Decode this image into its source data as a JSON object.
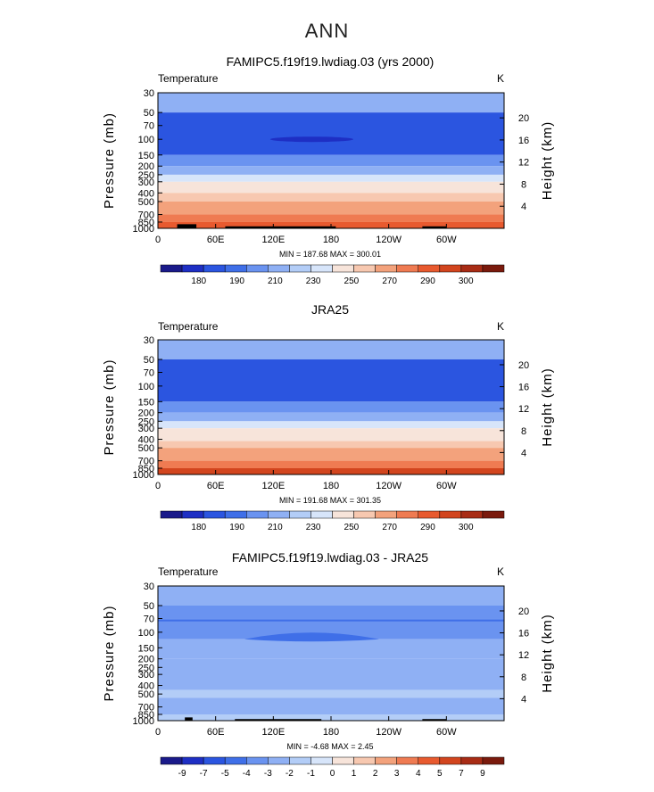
{
  "page_title": "ANN",
  "colorbar_colors_abs": [
    "#1a1a8a",
    "#1e2fc4",
    "#2b55e0",
    "#3f6fe8",
    "#6a93f0",
    "#8fb0f4",
    "#b3cdf7",
    "#d7e5fa",
    "#f7e4da",
    "#f7c8b0",
    "#f3a27c",
    "#ef7b52",
    "#e85a2f",
    "#d2451e",
    "#a82c15",
    "#7a1a0d"
  ],
  "colorbar_colors_diff": [
    "#1a1a8a",
    "#1e2fc4",
    "#2b55e0",
    "#3f6fe8",
    "#6a93f0",
    "#8fb0f4",
    "#b3cdf7",
    "#d7e5fa",
    "#f7e4da",
    "#f7c8b0",
    "#f3a27c",
    "#ef7b52",
    "#e85a2f",
    "#d2451e",
    "#a82c15",
    "#7a1a0d"
  ],
  "chart_data": [
    {
      "type": "contour",
      "title": "FAMIPC5.f19f19.lwdiag.03 (yrs 2000)",
      "variable_label": "Temperature",
      "units": "K",
      "ylabel": "Pressure (mb)",
      "ylabel2": "Height (km)",
      "xlabel": "",
      "x_ticks": [
        "0",
        "60E",
        "120E",
        "180",
        "120W",
        "60W"
      ],
      "x_tick_lon": [
        0,
        60,
        120,
        180,
        240,
        300
      ],
      "y_ticks": [
        "30",
        "50",
        "70",
        "100",
        "150",
        "200",
        "250",
        "300",
        "400",
        "500",
        "700",
        "850",
        "1000"
      ],
      "y_tick_p": [
        30,
        50,
        70,
        100,
        150,
        200,
        250,
        300,
        400,
        500,
        700,
        850,
        1000
      ],
      "height_ticks": [
        "20",
        "16",
        "12",
        "8",
        "4"
      ],
      "height_tick_km": [
        20,
        16,
        12,
        8,
        4
      ],
      "ylim": [
        1000,
        30
      ],
      "stats": "MIN = 187.68   MAX = 300.01",
      "min": 187.68,
      "max": 300.01,
      "colorbar_labels": [
        "180",
        "190",
        "210",
        "230",
        "250",
        "270",
        "290",
        "300"
      ],
      "layers": [
        {
          "p_top": 30,
          "p_bot": 50,
          "level": 5
        },
        {
          "p_top": 50,
          "p_bot": 150,
          "level": 2
        },
        {
          "p_top": 150,
          "p_bot": 200,
          "level": 4
        },
        {
          "p_top": 200,
          "p_bot": 250,
          "level": 5
        },
        {
          "p_top": 250,
          "p_bot": 300,
          "level": 7
        },
        {
          "p_top": 300,
          "p_bot": 400,
          "level": 8
        },
        {
          "p_top": 400,
          "p_bot": 500,
          "level": 9
        },
        {
          "p_top": 500,
          "p_bot": 700,
          "level": 10
        },
        {
          "p_top": 700,
          "p_bot": 850,
          "level": 11
        },
        {
          "p_top": 850,
          "p_bot": 1000,
          "level": 12
        }
      ]
    },
    {
      "type": "contour",
      "title": "JRA25",
      "variable_label": "Temperature",
      "units": "K",
      "ylabel": "Pressure (mb)",
      "ylabel2": "Height (km)",
      "xlabel": "",
      "x_ticks": [
        "0",
        "60E",
        "120E",
        "180",
        "120W",
        "60W"
      ],
      "x_tick_lon": [
        0,
        60,
        120,
        180,
        240,
        300
      ],
      "y_ticks": [
        "30",
        "50",
        "70",
        "100",
        "150",
        "200",
        "250",
        "300",
        "400",
        "500",
        "700",
        "850",
        "1000"
      ],
      "y_tick_p": [
        30,
        50,
        70,
        100,
        150,
        200,
        250,
        300,
        400,
        500,
        700,
        850,
        1000
      ],
      "height_ticks": [
        "20",
        "16",
        "12",
        "8",
        "4"
      ],
      "height_tick_km": [
        20,
        16,
        12,
        8,
        4
      ],
      "ylim": [
        1000,
        30
      ],
      "stats": "MIN = 191.68   MAX = 301.35",
      "min": 191.68,
      "max": 301.35,
      "colorbar_labels": [
        "180",
        "190",
        "210",
        "230",
        "250",
        "270",
        "290",
        "300"
      ],
      "layers": [
        {
          "p_top": 30,
          "p_bot": 50,
          "level": 5
        },
        {
          "p_top": 50,
          "p_bot": 150,
          "level": 2
        },
        {
          "p_top": 150,
          "p_bot": 200,
          "level": 4
        },
        {
          "p_top": 200,
          "p_bot": 250,
          "level": 5
        },
        {
          "p_top": 250,
          "p_bot": 300,
          "level": 7
        },
        {
          "p_top": 300,
          "p_bot": 400,
          "level": 8
        },
        {
          "p_top": 400,
          "p_bot": 500,
          "level": 9
        },
        {
          "p_top": 500,
          "p_bot": 700,
          "level": 10
        },
        {
          "p_top": 700,
          "p_bot": 850,
          "level": 11
        },
        {
          "p_top": 850,
          "p_bot": 1000,
          "level": 13
        }
      ]
    },
    {
      "type": "contour",
      "title": "FAMIPC5.f19f19.lwdiag.03 - JRA25",
      "variable_label": "Temperature",
      "units": "K",
      "ylabel": "Pressure (mb)",
      "ylabel2": "Height (km)",
      "xlabel": "",
      "x_ticks": [
        "0",
        "60E",
        "120E",
        "180",
        "120W",
        "60W"
      ],
      "x_tick_lon": [
        0,
        60,
        120,
        180,
        240,
        300
      ],
      "y_ticks": [
        "30",
        "50",
        "70",
        "100",
        "150",
        "200",
        "250",
        "300",
        "400",
        "500",
        "700",
        "850",
        "1000"
      ],
      "y_tick_p": [
        30,
        50,
        70,
        100,
        150,
        200,
        250,
        300,
        400,
        500,
        700,
        850,
        1000
      ],
      "height_ticks": [
        "20",
        "16",
        "12",
        "8",
        "4"
      ],
      "height_tick_km": [
        20,
        16,
        12,
        8,
        4
      ],
      "ylim": [
        1000,
        30
      ],
      "stats": "MIN =  -4.68   MAX =   2.45",
      "min": -4.68,
      "max": 2.45,
      "colorbar_labels": [
        "-9",
        "-7",
        "-5",
        "-4",
        "-3",
        "-2",
        "-1",
        "0",
        "1",
        "2",
        "3",
        "4",
        "5",
        "7",
        "9"
      ],
      "layers": [
        {
          "p_top": 30,
          "p_bot": 50,
          "level": 5
        },
        {
          "p_top": 50,
          "p_bot": 70,
          "level": 4
        },
        {
          "p_top": 70,
          "p_bot": 120,
          "level": 4
        },
        {
          "p_top": 120,
          "p_bot": 200,
          "level": 5
        },
        {
          "p_top": 200,
          "p_bot": 450,
          "level": 5
        },
        {
          "p_top": 450,
          "p_bot": 550,
          "level": 6
        },
        {
          "p_top": 550,
          "p_bot": 850,
          "level": 5
        },
        {
          "p_top": 850,
          "p_bot": 1000,
          "level": 6
        }
      ]
    }
  ]
}
